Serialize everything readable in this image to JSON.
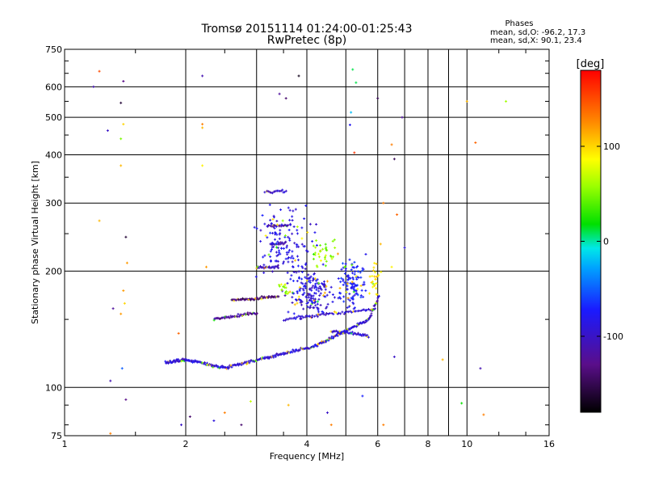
{
  "chart_data": {
    "type": "scatter",
    "title": "Tromsø 20151114 01:24:00-01:25:43",
    "subtitle": "RwPretec (8p)",
    "xlabel": "Frequency [MHz]",
    "ylabel": "Stationary phase Virtual Height [km]",
    "x_scale": "log",
    "y_scale": "log",
    "xlim": [
      1,
      16
    ],
    "ylim": [
      75,
      750
    ],
    "x_ticks": [
      1,
      2,
      4,
      6,
      8,
      10,
      16
    ],
    "x_minor_ticks": [
      3,
      5,
      7,
      9
    ],
    "y_ticks": [
      75,
      100,
      200,
      300,
      400,
      500,
      600,
      750
    ],
    "grid": true,
    "stats": {
      "heading": "Phases",
      "line1": "mean, sd,O: -96.2, 17.3",
      "line2": "mean, sd,X:  90.1, 23.4"
    },
    "colorbar": {
      "label": "[deg]",
      "range": [
        -180,
        180
      ],
      "ticks": [
        -100,
        0,
        100
      ],
      "tick_labels": [
        "-100",
        "0",
        "100"
      ]
    },
    "traces": [
      {
        "f_start": 1.78,
        "f_end": 2.0,
        "h_start": 116,
        "h_end": 118,
        "phase": -95,
        "n": 40
      },
      {
        "f_start": 2.0,
        "f_end": 2.55,
        "h_start": 118,
        "h_end": 112,
        "phase": -90,
        "n": 60
      },
      {
        "f_start": 2.55,
        "f_end": 4.2,
        "h_start": 113,
        "h_end": 128,
        "phase": -95,
        "n": 110
      },
      {
        "f_start": 4.2,
        "f_end": 5.7,
        "h_start": 128,
        "h_end": 150,
        "phase": -90,
        "n": 80
      },
      {
        "f_start": 5.7,
        "f_end": 6.05,
        "h_start": 150,
        "h_end": 172,
        "phase": -100,
        "n": 20
      },
      {
        "f_start": 2.35,
        "f_end": 3.0,
        "h_start": 150,
        "h_end": 156,
        "phase": -120,
        "n": 50
      },
      {
        "f_start": 2.6,
        "f_end": 3.4,
        "h_start": 168,
        "h_end": 172,
        "phase": -140,
        "n": 55
      },
      {
        "f_start": 3.0,
        "f_end": 3.4,
        "h_start": 204,
        "h_end": 206,
        "phase": -100,
        "n": 25
      },
      {
        "f_start": 3.25,
        "f_end": 3.55,
        "h_start": 235,
        "h_end": 236,
        "phase": -110,
        "n": 18
      },
      {
        "f_start": 3.2,
        "f_end": 3.6,
        "h_start": 262,
        "h_end": 262,
        "phase": -120,
        "n": 18
      },
      {
        "f_start": 3.15,
        "f_end": 3.55,
        "h_start": 320,
        "h_end": 322,
        "phase": -100,
        "n": 18
      },
      {
        "f_start": 3.5,
        "f_end": 5.9,
        "h_start": 150,
        "h_end": 160,
        "phase": -95,
        "n": 60
      },
      {
        "f_start": 4.6,
        "f_end": 5.7,
        "h_start": 140,
        "h_end": 136,
        "phase": -95,
        "n": 40
      }
    ],
    "blobs": [
      {
        "f_center": 3.55,
        "h_center": 240,
        "f_spread": 0.22,
        "h_spread": 0.3,
        "phase": -85,
        "n": 140
      },
      {
        "f_center": 4.1,
        "h_center": 175,
        "f_spread": 0.18,
        "h_spread": 0.2,
        "phase": -90,
        "n": 180
      },
      {
        "f_center": 5.2,
        "h_center": 185,
        "f_spread": 0.12,
        "h_spread": 0.22,
        "phase": -75,
        "n": 120
      },
      {
        "f_center": 4.4,
        "h_center": 225,
        "f_spread": 0.1,
        "h_spread": 0.12,
        "phase": 55,
        "n": 35
      },
      {
        "f_center": 5.9,
        "h_center": 190,
        "f_spread": 0.05,
        "h_spread": 0.15,
        "phase": 90,
        "n": 25
      },
      {
        "f_center": 3.5,
        "h_center": 180,
        "f_spread": 0.06,
        "h_spread": 0.05,
        "phase": 60,
        "n": 15
      }
    ],
    "scattered": [
      {
        "f": 1.22,
        "h": 658,
        "phase": 150
      },
      {
        "f": 1.4,
        "h": 620,
        "phase": -130
      },
      {
        "f": 1.38,
        "h": 545,
        "phase": -160
      },
      {
        "f": 1.4,
        "h": 480,
        "phase": 100
      },
      {
        "f": 1.28,
        "h": 462,
        "phase": -100
      },
      {
        "f": 1.38,
        "h": 440,
        "phase": 50
      },
      {
        "f": 1.38,
        "h": 375,
        "phase": 110
      },
      {
        "f": 1.42,
        "h": 245,
        "phase": -160
      },
      {
        "f": 1.43,
        "h": 210,
        "phase": 120
      },
      {
        "f": 1.4,
        "h": 178,
        "phase": 120
      },
      {
        "f": 1.41,
        "h": 165,
        "phase": 100
      },
      {
        "f": 1.32,
        "h": 160,
        "phase": -120
      },
      {
        "f": 1.38,
        "h": 155,
        "phase": 120
      },
      {
        "f": 1.39,
        "h": 112,
        "phase": -50
      },
      {
        "f": 1.3,
        "h": 104,
        "phase": -110
      },
      {
        "f": 1.42,
        "h": 93,
        "phase": -130
      },
      {
        "f": 1.3,
        "h": 76,
        "phase": 130
      },
      {
        "f": 1.18,
        "h": 600,
        "phase": -110
      },
      {
        "f": 1.22,
        "h": 270,
        "phase": 110
      },
      {
        "f": 2.2,
        "h": 640,
        "phase": -110
      },
      {
        "f": 2.2,
        "h": 480,
        "phase": 130
      },
      {
        "f": 2.2,
        "h": 470,
        "phase": 110
      },
      {
        "f": 2.2,
        "h": 375,
        "phase": 90
      },
      {
        "f": 2.25,
        "h": 205,
        "phase": 120
      },
      {
        "f": 1.92,
        "h": 138,
        "phase": 140
      },
      {
        "f": 2.05,
        "h": 84,
        "phase": -140
      },
      {
        "f": 1.95,
        "h": 80,
        "phase": -100
      },
      {
        "f": 2.35,
        "h": 82,
        "phase": -90
      },
      {
        "f": 2.5,
        "h": 86,
        "phase": 130
      },
      {
        "f": 3.82,
        "h": 640,
        "phase": -170
      },
      {
        "f": 3.42,
        "h": 575,
        "phase": -120
      },
      {
        "f": 3.55,
        "h": 560,
        "phase": -140
      },
      {
        "f": 5.2,
        "h": 665,
        "phase": 10
      },
      {
        "f": 5.3,
        "h": 615,
        "phase": 10
      },
      {
        "f": 5.15,
        "h": 515,
        "phase": -20
      },
      {
        "f": 5.12,
        "h": 478,
        "phase": -80
      },
      {
        "f": 5.25,
        "h": 405,
        "phase": 160
      },
      {
        "f": 6.0,
        "h": 560,
        "phase": -150
      },
      {
        "f": 6.9,
        "h": 500,
        "phase": -120
      },
      {
        "f": 6.5,
        "h": 425,
        "phase": 130
      },
      {
        "f": 6.6,
        "h": 390,
        "phase": -150
      },
      {
        "f": 6.2,
        "h": 300,
        "phase": 130
      },
      {
        "f": 6.7,
        "h": 280,
        "phase": 140
      },
      {
        "f": 7.0,
        "h": 230,
        "phase": -90
      },
      {
        "f": 6.1,
        "h": 235,
        "phase": 110
      },
      {
        "f": 6.5,
        "h": 205,
        "phase": 90
      },
      {
        "f": 6.6,
        "h": 120,
        "phase": -100
      },
      {
        "f": 8.7,
        "h": 118,
        "phase": 110
      },
      {
        "f": 9.7,
        "h": 91,
        "phase": 20
      },
      {
        "f": 10.8,
        "h": 112,
        "phase": -110
      },
      {
        "f": 11.0,
        "h": 85,
        "phase": 130
      },
      {
        "f": 10.0,
        "h": 550,
        "phase": 110
      },
      {
        "f": 10.5,
        "h": 430,
        "phase": 140
      },
      {
        "f": 12.5,
        "h": 550,
        "phase": 60
      },
      {
        "f": 6.2,
        "h": 80,
        "phase": 130
      },
      {
        "f": 4.5,
        "h": 86,
        "phase": -100
      },
      {
        "f": 3.6,
        "h": 90,
        "phase": 110
      },
      {
        "f": 2.9,
        "h": 92,
        "phase": 70
      },
      {
        "f": 2.75,
        "h": 80,
        "phase": -140
      },
      {
        "f": 4.6,
        "h": 80,
        "phase": 130
      },
      {
        "f": 5.5,
        "h": 95,
        "phase": -70
      }
    ]
  }
}
